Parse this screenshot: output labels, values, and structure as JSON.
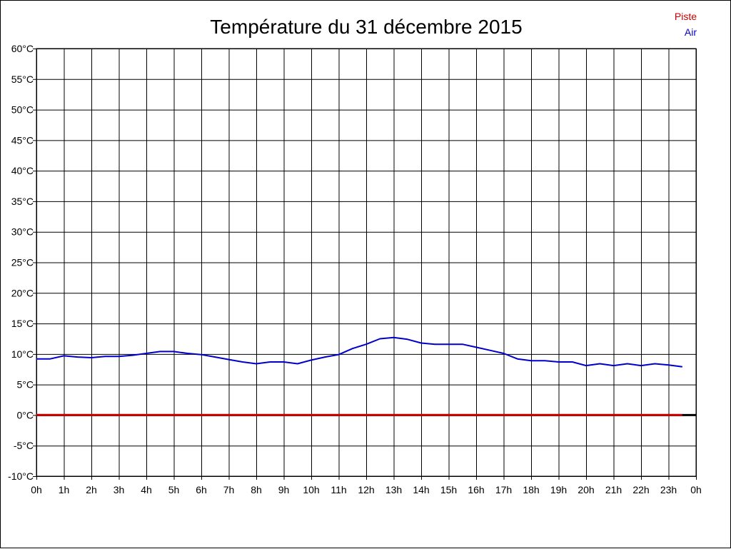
{
  "chart_data": {
    "type": "line",
    "title": "Température du 31 décembre 2015",
    "xlabel": "",
    "ylabel": "",
    "xlim": [
      0,
      24
    ],
    "ylim": [
      -10,
      60
    ],
    "grid": true,
    "legend_position": "top-right",
    "x_ticks": [
      0,
      1,
      2,
      3,
      4,
      5,
      6,
      7,
      8,
      9,
      10,
      11,
      12,
      13,
      14,
      15,
      16,
      17,
      18,
      19,
      20,
      21,
      22,
      23,
      24
    ],
    "x_tick_labels": [
      "0h",
      "1h",
      "2h",
      "3h",
      "4h",
      "5h",
      "6h",
      "7h",
      "8h",
      "9h",
      "10h",
      "11h",
      "12h",
      "13h",
      "14h",
      "15h",
      "16h",
      "17h",
      "18h",
      "19h",
      "20h",
      "21h",
      "22h",
      "23h",
      "0h"
    ],
    "y_ticks": [
      -10,
      -5,
      0,
      5,
      10,
      15,
      20,
      25,
      30,
      35,
      40,
      45,
      50,
      55,
      60
    ],
    "y_tick_labels": [
      "-10°C",
      "-5°C",
      "0°C",
      "5°C",
      "10°C",
      "15°C",
      "20°C",
      "25°C",
      "30°C",
      "35°C",
      "40°C",
      "45°C",
      "50°C",
      "55°C",
      "60°C"
    ],
    "series": [
      {
        "name": "Piste",
        "color": "#cc0000",
        "x": [
          0,
          23.5
        ],
        "y": [
          0,
          0
        ]
      },
      {
        "name": "Air",
        "color": "#0000cc",
        "x": [
          0,
          0.5,
          1,
          1.5,
          2,
          2.5,
          3,
          3.5,
          4,
          4.5,
          5,
          5.5,
          6,
          6.5,
          7,
          7.5,
          8,
          8.5,
          9,
          9.5,
          10,
          10.5,
          11,
          11.5,
          12,
          12.5,
          13,
          13.5,
          14,
          14.5,
          15,
          15.5,
          16,
          16.5,
          17,
          17.5,
          18,
          18.5,
          19,
          19.5,
          20,
          20.5,
          21,
          21.5,
          22,
          22.5,
          23,
          23.5
        ],
        "y": [
          9.2,
          9.2,
          9.7,
          9.5,
          9.4,
          9.6,
          9.6,
          9.8,
          10.1,
          10.4,
          10.4,
          10.1,
          9.9,
          9.5,
          9.1,
          8.7,
          8.4,
          8.7,
          8.7,
          8.4,
          9.0,
          9.5,
          9.9,
          10.9,
          11.6,
          12.5,
          12.7,
          12.4,
          11.8,
          11.6,
          11.6,
          11.6,
          11.1,
          10.6,
          10.1,
          9.2,
          8.9,
          8.9,
          8.7,
          8.7,
          8.1,
          8.4,
          8.1,
          8.4,
          8.1,
          8.4,
          8.2,
          7.9
        ]
      }
    ],
    "axis_color": "#000000",
    "grid_color": "#000000"
  }
}
